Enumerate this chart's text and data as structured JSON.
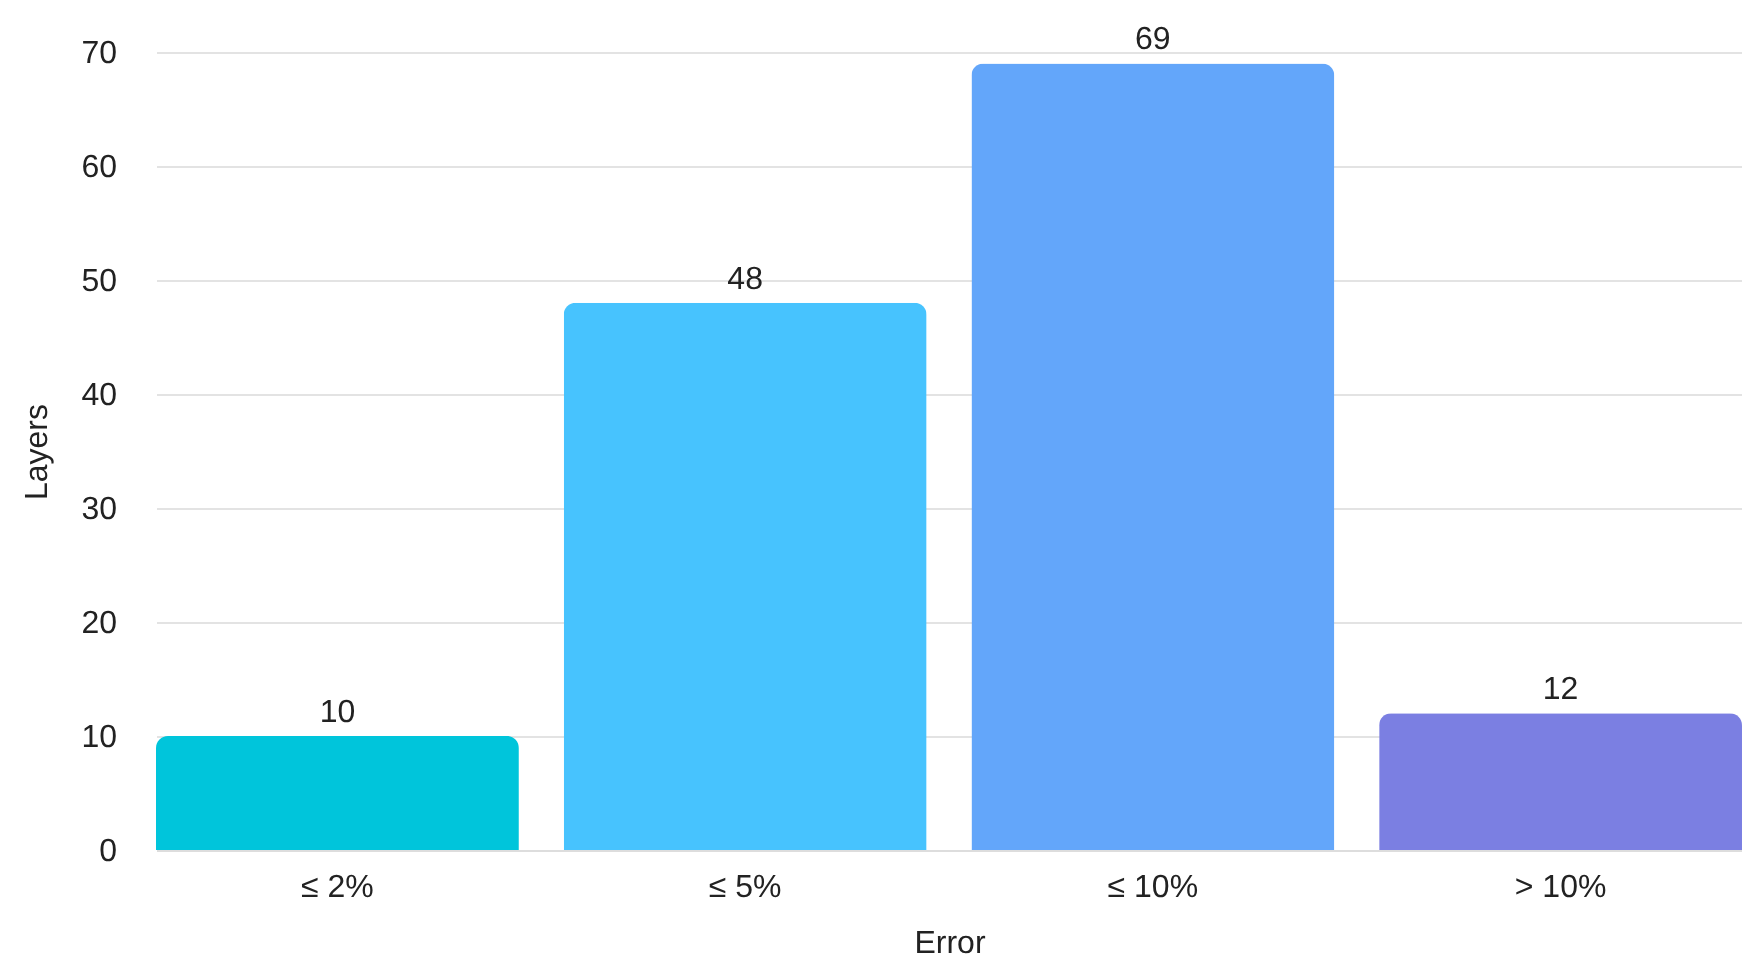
{
  "chart_data": {
    "type": "bar",
    "xlabel": "Error",
    "ylabel": "Layers",
    "categories": [
      "≤ 2%",
      "≤ 5%",
      "≤ 10%",
      "> 10%"
    ],
    "values": [
      10,
      48,
      69,
      12
    ],
    "colors": [
      "#00c5db",
      "#47c3fe",
      "#63a6fa",
      "#7b7fe2"
    ],
    "ylim": [
      0,
      70
    ],
    "yticks": [
      0,
      10,
      20,
      30,
      40,
      50,
      60,
      70
    ],
    "grid": "y",
    "data_labels": true
  }
}
